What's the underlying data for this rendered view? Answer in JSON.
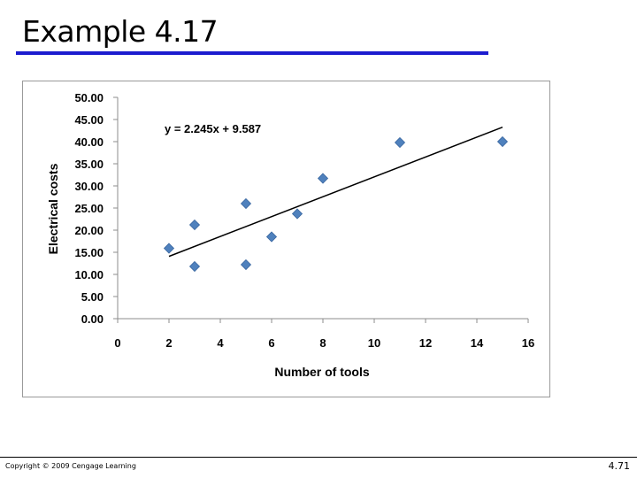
{
  "slide": {
    "title": "Example 4.17",
    "copyright": "Copyright © 2009 Cengage Learning",
    "page_number": "4.71"
  },
  "colors": {
    "title_rule": "#1c1ccf",
    "marker": "#4f81bd",
    "marker_edge": "#3a67a0",
    "trendline": "#000000"
  },
  "chart_data": {
    "type": "scatter",
    "xlabel": "Number of tools",
    "ylabel": "Electrical costs",
    "xlim": [
      0,
      16
    ],
    "ylim": [
      0,
      50
    ],
    "x_ticks": [
      "0",
      "2",
      "4",
      "6",
      "8",
      "10",
      "12",
      "14",
      "16"
    ],
    "y_ticks": [
      "0.00",
      "5.00",
      "10.00",
      "15.00",
      "20.00",
      "25.00",
      "30.00",
      "35.00",
      "40.00",
      "45.00",
      "50.00"
    ],
    "grid": false,
    "legend": "none",
    "marker": "diamond",
    "points": [
      {
        "x": 2,
        "y": 15.9
      },
      {
        "x": 3,
        "y": 21.2
      },
      {
        "x": 3,
        "y": 11.8
      },
      {
        "x": 5,
        "y": 26.0
      },
      {
        "x": 5,
        "y": 12.2
      },
      {
        "x": 6,
        "y": 18.5
      },
      {
        "x": 7,
        "y": 23.7
      },
      {
        "x": 8,
        "y": 31.7
      },
      {
        "x": 11,
        "y": 39.8
      },
      {
        "x": 15,
        "y": 40.0
      }
    ],
    "trendline": {
      "equation": "y = 2.245x + 9.587",
      "slope": 2.245,
      "intercept": 9.587,
      "x_range": [
        2,
        15
      ]
    }
  }
}
